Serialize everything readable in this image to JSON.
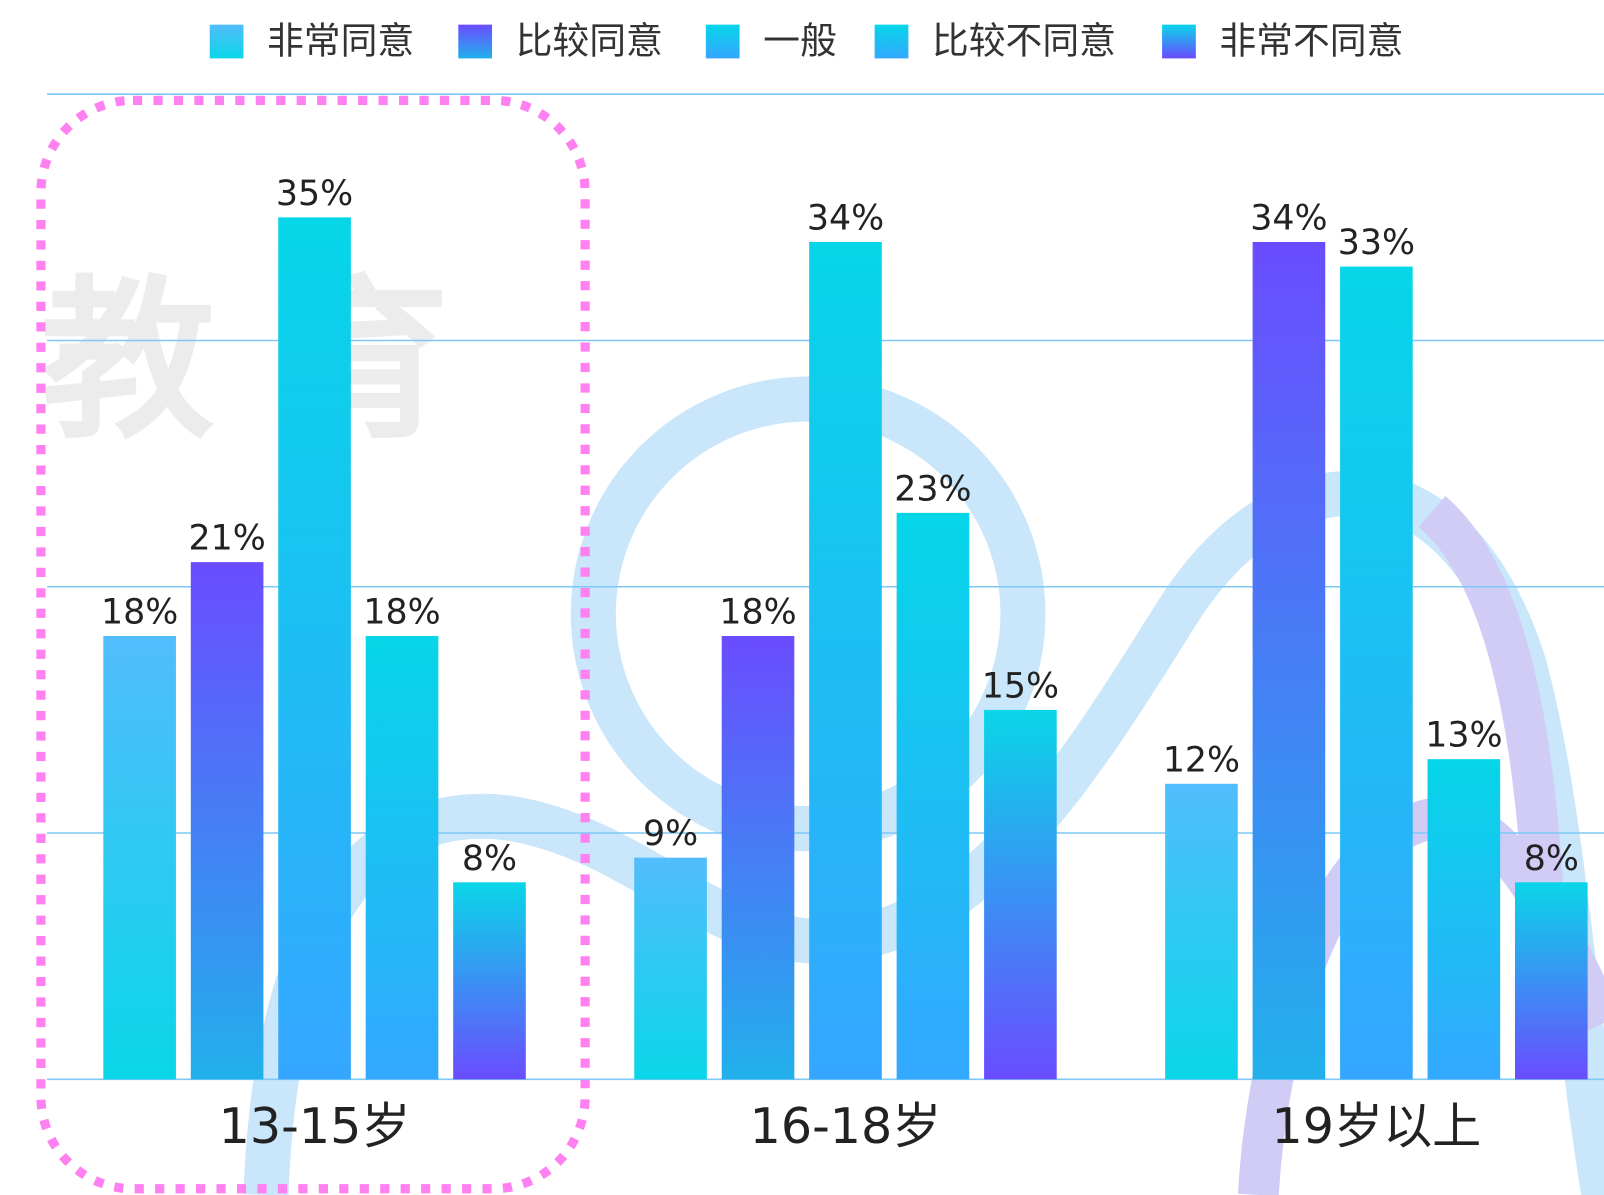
{
  "chart_data": {
    "type": "bar",
    "watermark": "教 育",
    "categories": [
      "13-15岁",
      "16-18岁",
      "19岁以上"
    ],
    "series": [
      {
        "name": "非常同意",
        "color": "#52bdfc",
        "gradient_to": "#0ad6e8",
        "values": [
          18,
          9,
          12
        ],
        "value_labels": [
          "18%",
          "9%",
          "12%"
        ]
      },
      {
        "name": "比较同意",
        "color": "#6a4cff",
        "gradient_to": "#22b0ec",
        "values": [
          21,
          18,
          34
        ],
        "value_labels": [
          "21%",
          "18%",
          "34%"
        ]
      },
      {
        "name": "一般",
        "color": "#06d6e8",
        "gradient_to": "#35a6ff",
        "values": [
          35,
          34,
          33
        ],
        "value_labels": [
          "35%",
          "34%",
          "33%"
        ]
      },
      {
        "name": "比较不同意",
        "color": "#06d6e8",
        "gradient_to": "#33a8ff",
        "values": [
          18,
          23,
          13
        ],
        "value_labels": [
          "18%",
          "23%",
          "13%"
        ]
      },
      {
        "name": "非常不同意",
        "color": "#0ad6e8",
        "gradient_to": "#6a4cff",
        "values": [
          8,
          15,
          8
        ],
        "value_labels": [
          "8%",
          "15%",
          "8%"
        ]
      }
    ],
    "ylim": [
      0,
      40
    ],
    "yticks": [
      0,
      10,
      20,
      30,
      40
    ],
    "grid": true,
    "legend": "top"
  }
}
